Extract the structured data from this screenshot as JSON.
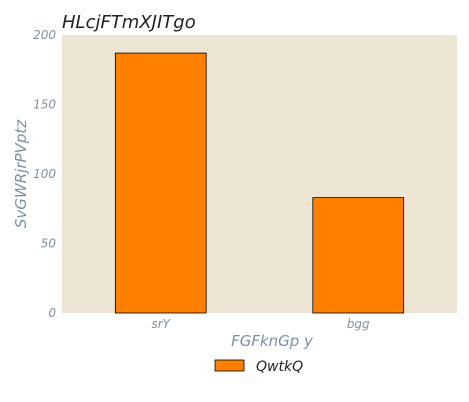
{
  "chart_data": {
    "type": "bar",
    "title": "HLcjFTmXJITgo",
    "xlabel": "FGFknGp y",
    "ylabel": "SvGWRjrPVptz",
    "categories": [
      "srY",
      "bgg"
    ],
    "series": [
      {
        "name": "QwtkQ",
        "values": [
          187,
          83
        ],
        "color": "#ff8000"
      }
    ],
    "ylim": [
      0,
      200
    ],
    "yticks": [
      0,
      50,
      100,
      150,
      200
    ],
    "grid": false,
    "legend_position": "bottom-center",
    "colors": {
      "plot_background": "#ede6d4",
      "bar_edge": "#000000",
      "axis_text": "#8090a0"
    }
  }
}
